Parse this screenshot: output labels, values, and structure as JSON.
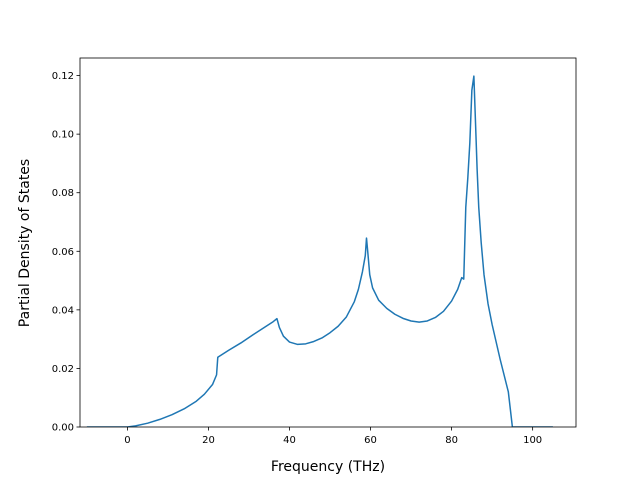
{
  "chart_data": {
    "type": "line",
    "title": "",
    "xlabel": "Frequency (THz)",
    "ylabel": "Partial Density of States",
    "xlim": [
      -11.7,
      110.7
    ],
    "ylim": [
      0.0,
      0.126
    ],
    "xticks": [
      0,
      20,
      40,
      60,
      80,
      100
    ],
    "yticks": [
      0.0,
      0.02,
      0.04,
      0.06,
      0.08,
      0.1,
      0.12
    ],
    "xtick_labels": [
      "0",
      "20",
      "40",
      "60",
      "80",
      "100"
    ],
    "ytick_labels": [
      "0.00",
      "0.02",
      "0.04",
      "0.06",
      "0.08",
      "0.10",
      "0.12"
    ],
    "grid": false,
    "legend": "none",
    "series": [
      {
        "color": "#1f77b4",
        "x": [
          -10,
          -5,
          0,
          2,
          5,
          8,
          11,
          14,
          17,
          19,
          21,
          22,
          22.3,
          25,
          28,
          31,
          34,
          36,
          36.9,
          37.5,
          38.5,
          40,
          42,
          44,
          46,
          48,
          50,
          52,
          54,
          56,
          57,
          58,
          58.7,
          59,
          59.3,
          59.8,
          60.5,
          62,
          64,
          66,
          68,
          70,
          72,
          74,
          76,
          78,
          80,
          81.5,
          82.5,
          83,
          83.5,
          84,
          84.5,
          85,
          85.5,
          86,
          86.3,
          86.7,
          87.3,
          88,
          89,
          90,
          92,
          94,
          95,
          95.3,
          96,
          100,
          105
        ],
        "y": [
          0.0,
          0.0,
          0.0,
          0.0004,
          0.0013,
          0.0026,
          0.0042,
          0.0062,
          0.0088,
          0.0112,
          0.0145,
          0.0178,
          0.0238,
          0.0262,
          0.0287,
          0.0315,
          0.0342,
          0.036,
          0.037,
          0.034,
          0.031,
          0.029,
          0.0282,
          0.0284,
          0.0292,
          0.0304,
          0.0322,
          0.0344,
          0.0375,
          0.0428,
          0.047,
          0.053,
          0.0585,
          0.0645,
          0.06,
          0.052,
          0.0475,
          0.0433,
          0.0405,
          0.0385,
          0.0371,
          0.0362,
          0.0358,
          0.0362,
          0.0374,
          0.0395,
          0.043,
          0.047,
          0.051,
          0.0505,
          0.075,
          0.085,
          0.097,
          0.115,
          0.1198,
          0.1,
          0.088,
          0.075,
          0.063,
          0.052,
          0.042,
          0.035,
          0.023,
          0.012,
          0.0,
          0.0,
          0.0,
          0.0,
          0.0
        ]
      }
    ]
  }
}
